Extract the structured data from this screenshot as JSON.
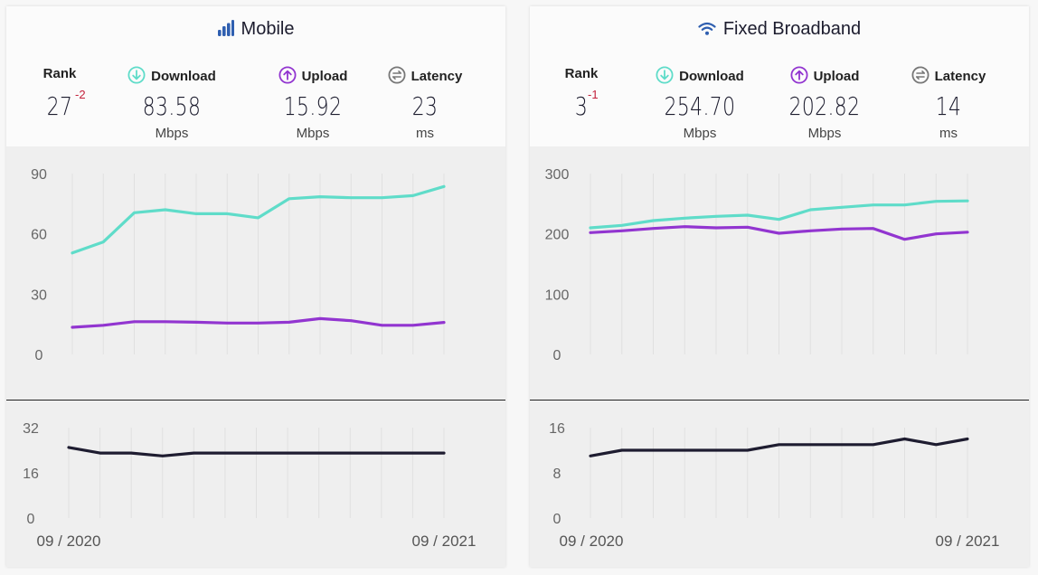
{
  "colors": {
    "download": "#5fdcc9",
    "upload": "#9235d0",
    "latency": "#1e1c30",
    "rank_delta": "#c3213c"
  },
  "panels": [
    {
      "id": "mobile",
      "title": "Mobile",
      "icon": "signal-bars-icon",
      "rank_label": "Rank",
      "rank": "27",
      "rank_change": "-2",
      "download_label": "Download",
      "download_value": "83.58",
      "download_unit": "Mbps",
      "upload_label": "Upload",
      "upload_value": "15.92",
      "upload_unit": "Mbps",
      "latency_label": "Latency",
      "latency_value": "23",
      "latency_unit": "ms",
      "x_start_label": "09 / 2020",
      "x_end_label": "09 / 2021"
    },
    {
      "id": "fixed",
      "title": "Fixed Broadband",
      "icon": "wifi-icon",
      "rank_label": "Rank",
      "rank": "3",
      "rank_change": "-1",
      "download_label": "Download",
      "download_value": "254.70",
      "download_unit": "Mbps",
      "upload_label": "Upload",
      "upload_value": "202.82",
      "upload_unit": "Mbps",
      "latency_label": "Latency",
      "latency_value": "14",
      "latency_unit": "ms",
      "x_start_label": "09 / 2020",
      "x_end_label": "09 / 2021"
    }
  ],
  "chart_data": [
    {
      "type": "line",
      "panel": "mobile",
      "x": [
        "09/2020",
        "10/2020",
        "11/2020",
        "12/2020",
        "01/2021",
        "02/2021",
        "03/2021",
        "04/2021",
        "05/2021",
        "06/2021",
        "07/2021",
        "08/2021",
        "09/2021"
      ],
      "ylim": [
        0,
        90
      ],
      "yticks": [
        0,
        30,
        60,
        90
      ],
      "grid": true,
      "series": [
        {
          "key": "download",
          "values": [
            50.5,
            56,
            70.5,
            72,
            70,
            70,
            68,
            77.5,
            78.5,
            78,
            78,
            79,
            83.58
          ]
        },
        {
          "key": "upload",
          "values": [
            13.5,
            14.5,
            16.3,
            16.3,
            16,
            15.6,
            15.6,
            16,
            17.8,
            16.8,
            14.5,
            14.5,
            15.92
          ]
        }
      ]
    },
    {
      "type": "line",
      "panel": "mobile-latency",
      "x": [
        "09/2020",
        "10/2020",
        "11/2020",
        "12/2020",
        "01/2021",
        "02/2021",
        "03/2021",
        "04/2021",
        "05/2021",
        "06/2021",
        "07/2021",
        "08/2021",
        "09/2021"
      ],
      "ylim": [
        0,
        32
      ],
      "yticks": [
        0,
        16,
        32
      ],
      "grid": true,
      "series": [
        {
          "key": "latency",
          "values": [
            25,
            23,
            23,
            22,
            23,
            23,
            23,
            23,
            23,
            23,
            23,
            23,
            23
          ]
        }
      ]
    },
    {
      "type": "line",
      "panel": "fixed",
      "x": [
        "09/2020",
        "10/2020",
        "11/2020",
        "12/2020",
        "01/2021",
        "02/2021",
        "03/2021",
        "04/2021",
        "05/2021",
        "06/2021",
        "07/2021",
        "08/2021",
        "09/2021"
      ],
      "ylim": [
        0,
        300
      ],
      "yticks": [
        0,
        100,
        200,
        300
      ],
      "grid": true,
      "series": [
        {
          "key": "download",
          "values": [
            210,
            214,
            222,
            226,
            229,
            231,
            224,
            240,
            244,
            248,
            248,
            254,
            254.7
          ]
        },
        {
          "key": "upload",
          "values": [
            202,
            205,
            209,
            212,
            210,
            211,
            201,
            205,
            208,
            209,
            191,
            200,
            202.82
          ]
        }
      ]
    },
    {
      "type": "line",
      "panel": "fixed-latency",
      "x": [
        "09/2020",
        "10/2020",
        "11/2020",
        "12/2020",
        "01/2021",
        "02/2021",
        "03/2021",
        "04/2021",
        "05/2021",
        "06/2021",
        "07/2021",
        "08/2021",
        "09/2021"
      ],
      "ylim": [
        0,
        16
      ],
      "yticks": [
        0,
        8,
        16
      ],
      "grid": true,
      "series": [
        {
          "key": "latency",
          "values": [
            11,
            12,
            12,
            12,
            12,
            12,
            13,
            13,
            13,
            13,
            14,
            13,
            14
          ]
        }
      ]
    }
  ]
}
